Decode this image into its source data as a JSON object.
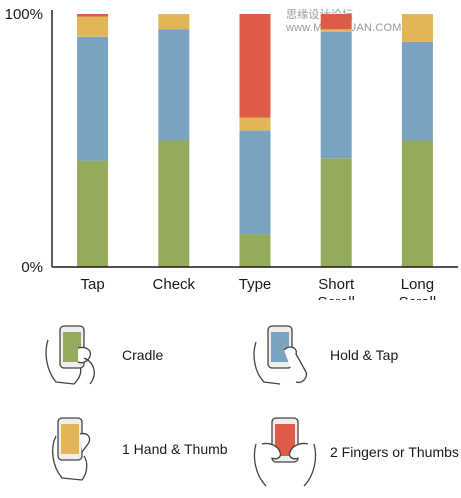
{
  "watermark": "思缘设计论坛 www.MISSYUAN.COM",
  "colors": {
    "cradle": "#93ab5a",
    "hold_tap": "#7aa3c0",
    "one_hand_thumb": "#e2b556",
    "two_fingers_thumbs": "#dd5b47"
  },
  "chart_data": {
    "type": "bar",
    "stacked": true,
    "categories": [
      [
        "Tap"
      ],
      [
        "Check"
      ],
      [
        "Type"
      ],
      [
        "Short",
        "Scroll"
      ],
      [
        "Long",
        "Scroll"
      ]
    ],
    "ylim": [
      0,
      100
    ],
    "y_ticks": [
      {
        "value": 0,
        "label": "0%"
      },
      {
        "value": 100,
        "label": "100%"
      }
    ],
    "series": [
      {
        "key": "cradle",
        "values": [
          42,
          50,
          13,
          43,
          50
        ]
      },
      {
        "key": "hold_tap",
        "values": [
          49,
          44,
          41,
          50,
          39
        ]
      },
      {
        "key": "one_hand_thumb",
        "values": [
          8,
          6,
          5,
          1,
          11
        ]
      },
      {
        "key": "two_fingers_thumbs",
        "values": [
          1,
          0,
          41,
          6,
          0
        ]
      }
    ]
  },
  "legend": [
    {
      "key": "cradle",
      "label": "Cradle",
      "icon": "cradle-grip-icon"
    },
    {
      "key": "hold_tap",
      "label": "Hold & Tap",
      "icon": "hold-tap-grip-icon"
    },
    {
      "key": "one_hand_thumb",
      "label": "1 Hand & Thumb",
      "icon": "one-hand-thumb-grip-icon"
    },
    {
      "key": "two_fingers_thumbs",
      "label": "2 Fingers or Thumbs",
      "icon": "two-fingers-thumbs-grip-icon"
    }
  ]
}
